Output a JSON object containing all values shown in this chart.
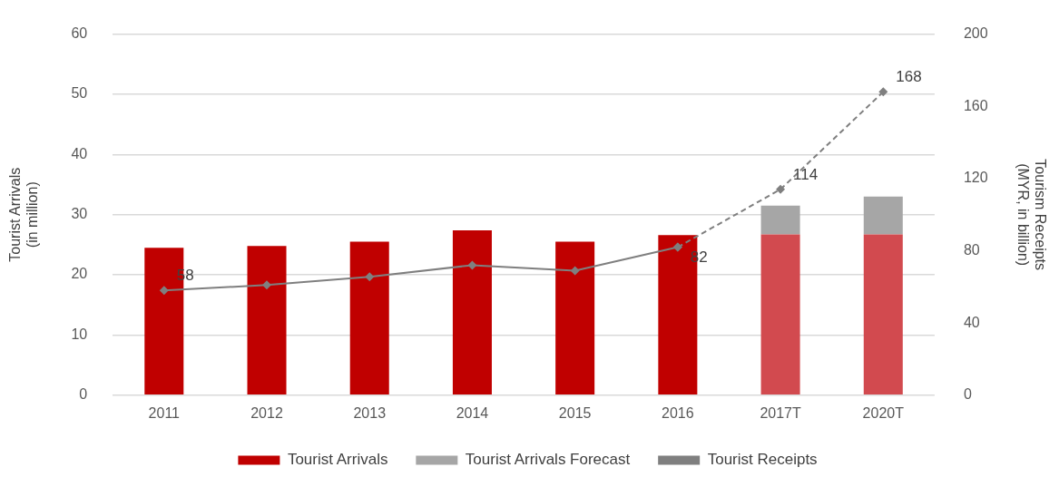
{
  "chart_data": {
    "type": "bar",
    "stacked": true,
    "categories": [
      "2011",
      "2012",
      "2013",
      "2014",
      "2015",
      "2016",
      "2017T",
      "2020T"
    ],
    "ylabel": "Tourist Arrivals\n(in million)",
    "y2label": "Tourism Receipts\n(MYR, in billion)",
    "ylim": [
      0,
      60
    ],
    "yticks": [
      0,
      10,
      20,
      30,
      40,
      50,
      60
    ],
    "y2lim": [
      0,
      200
    ],
    "y2ticks": [
      0,
      40,
      80,
      120,
      160,
      200
    ],
    "grid": "y",
    "legend": "bottom",
    "series": [
      {
        "name": "Tourist Arrivals",
        "color": "#c00000",
        "colors": [
          "#c00000",
          "#c00000",
          "#c00000",
          "#c00000",
          "#c00000",
          "#c00000",
          "#d24a4f",
          "#d24a4f"
        ],
        "values": [
          24.5,
          24.8,
          25.5,
          27.4,
          25.5,
          26.6,
          26.7,
          26.7
        ]
      },
      {
        "name": "Tourist Arrivals Forecast",
        "color": "#a6a6a6",
        "values": [
          null,
          null,
          null,
          null,
          null,
          null,
          4.8,
          6.3
        ]
      },
      {
        "name": "Tourist Receipts",
        "type": "line",
        "axis": "y2",
        "color": "#7f7f7f",
        "marker": "diamond",
        "line_style": "solid",
        "values": [
          58,
          61,
          65.6,
          72,
          69,
          82,
          null,
          null
        ],
        "value_labels": [
          "58",
          null,
          null,
          null,
          null,
          "82",
          null,
          null
        ]
      },
      {
        "type": "line",
        "axis": "y2",
        "color": "#7f7f7f",
        "marker": "diamond",
        "line_style": "dashed",
        "values": [
          null,
          null,
          null,
          null,
          null,
          82,
          114,
          168
        ],
        "value_labels": [
          null,
          null,
          null,
          null,
          null,
          null,
          "114",
          "168"
        ]
      }
    ]
  }
}
